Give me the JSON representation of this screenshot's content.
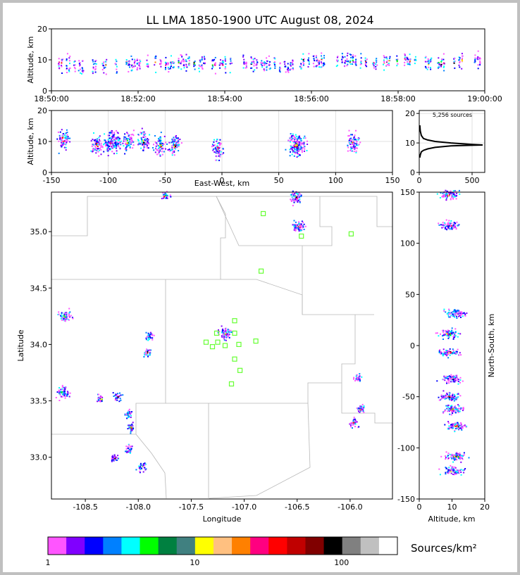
{
  "title": "LL LMA 1850-1900 UTC August 08, 2024",
  "panels": {
    "time_height": {
      "ylabel": "Altitude, km",
      "y_ticks": [
        "0",
        "10",
        "20"
      ],
      "x_ticks": [
        "18:50:00",
        "18:52:00",
        "18:54:00",
        "18:56:00",
        "18:58:00",
        "19:00:00"
      ]
    },
    "ew_height": {
      "ylabel": "Altitude, km",
      "xlabel": "East-West, km",
      "y_ticks": [
        "0",
        "10",
        "20"
      ],
      "x_ticks": [
        "-150",
        "-100",
        "-50",
        "0",
        "50",
        "100",
        "150"
      ]
    },
    "histogram": {
      "annotation": "5,256 sources",
      "x_ticks": [
        "0",
        "500"
      ],
      "y_ticks": [
        "0",
        "10",
        "20"
      ]
    },
    "plan_view": {
      "xlabel": "Longitude",
      "ylabel": "Latitude",
      "x_ticks": [
        "-108.5",
        "-108.0",
        "-107.5",
        "-107.0",
        "-106.5",
        "-106.0"
      ],
      "y_ticks": [
        "33.0",
        "33.5",
        "34.0",
        "34.5",
        "35.0"
      ]
    },
    "ns_height": {
      "xlabel": "Altitude, km",
      "ylabel": "North-South, km",
      "x_ticks": [
        "0",
        "10",
        "20"
      ],
      "y_ticks": [
        "-150",
        "-100",
        "-50",
        "0",
        "50",
        "100",
        "150"
      ]
    },
    "colorbar": {
      "label": "Sources/km²",
      "ticks": [
        "1",
        "10",
        "100"
      ],
      "colors": [
        "#ff55ff",
        "#8000ff",
        "#0000ff",
        "#0080ff",
        "#00ffff",
        "#00ff00",
        "#008040",
        "#408080",
        "#ffff00",
        "#ffc080",
        "#ff8000",
        "#ff0080",
        "#ff0000",
        "#c00000",
        "#800000",
        "#000000",
        "#808080",
        "#c0c0c0",
        "#ffffff"
      ]
    }
  },
  "chart_data": [
    {
      "type": "scatter",
      "panel": "time_height",
      "xlim": [
        "18:50:00",
        "19:00:00"
      ],
      "ylim": [
        0,
        20
      ],
      "clusters": [
        {
          "t_minutes": 0.2,
          "alt_km": 9
        },
        {
          "t_minutes": 1.0,
          "alt_km": 8
        },
        {
          "t_minutes": 2.0,
          "alt_km": 9
        },
        {
          "t_minutes": 3.0,
          "alt_km": 9
        },
        {
          "t_minutes": 4.0,
          "alt_km": 9
        },
        {
          "t_minutes": 5.0,
          "alt_km": 9
        },
        {
          "t_minutes": 5.5,
          "alt_km": 8
        },
        {
          "t_minutes": 6.0,
          "alt_km": 10
        },
        {
          "t_minutes": 7.0,
          "alt_km": 10
        },
        {
          "t_minutes": 7.5,
          "alt_km": 9
        },
        {
          "t_minutes": 8.0,
          "alt_km": 10
        },
        {
          "t_minutes": 9.0,
          "alt_km": 9
        },
        {
          "t_minutes": 9.8,
          "alt_km": 10
        }
      ]
    },
    {
      "type": "scatter",
      "panel": "ew_height",
      "xlim": [
        -150,
        150
      ],
      "ylim": [
        0,
        20
      ],
      "clusters": [
        {
          "x_km": -140,
          "alt_km": 11
        },
        {
          "x_km": -110,
          "alt_km": 9
        },
        {
          "x_km": -97,
          "alt_km": 10
        },
        {
          "x_km": -83,
          "alt_km": 10
        },
        {
          "x_km": -69,
          "alt_km": 10
        },
        {
          "x_km": -55,
          "alt_km": 9
        },
        {
          "x_km": -42,
          "alt_km": 9
        },
        {
          "x_km": -4,
          "alt_km": 8
        },
        {
          "x_km": 65,
          "alt_km": 9
        },
        {
          "x_km": 115,
          "alt_km": 10
        }
      ]
    },
    {
      "type": "line",
      "panel": "histogram",
      "xlabel": "",
      "ylabel": "",
      "xlim": [
        0,
        620
      ],
      "ylim": [
        0,
        21
      ],
      "sources": 5256,
      "x": [
        5,
        10,
        20,
        40,
        80,
        150,
        300,
        500,
        600,
        500,
        300,
        150,
        80,
        40,
        20,
        10,
        5
      ],
      "y": [
        5,
        6,
        7,
        7.5,
        8,
        8.5,
        9,
        9.2,
        9.3,
        9.5,
        10,
        10.5,
        11,
        11.5,
        12.5,
        14,
        16
      ]
    },
    {
      "type": "scatter",
      "panel": "plan_view",
      "xlim": [
        -108.82,
        -105.6
      ],
      "ylim": [
        32.63,
        35.35
      ],
      "clusters": [
        {
          "lon": -108.7,
          "lat": 34.25
        },
        {
          "lon": -108.72,
          "lat": 33.58
        },
        {
          "lon": -108.36,
          "lat": 33.52
        },
        {
          "lon": -108.2,
          "lat": 33.54
        },
        {
          "lon": -108.1,
          "lat": 33.39
        },
        {
          "lon": -108.07,
          "lat": 33.27
        },
        {
          "lon": -108.23,
          "lat": 33.0
        },
        {
          "lon": -108.09,
          "lat": 33.08
        },
        {
          "lon": -107.97,
          "lat": 32.92
        },
        {
          "lon": -107.9,
          "lat": 34.08
        },
        {
          "lon": -107.92,
          "lat": 33.93
        },
        {
          "lon": -107.19,
          "lat": 34.1
        },
        {
          "lon": -106.49,
          "lat": 35.05
        },
        {
          "lon": -106.51,
          "lat": 35.31
        },
        {
          "lon": -107.75,
          "lat": 35.32
        },
        {
          "lon": -105.94,
          "lat": 33.71
        },
        {
          "lon": -105.97,
          "lat": 33.31
        },
        {
          "lon": -105.9,
          "lat": 33.43
        }
      ],
      "stations": [
        {
          "lon": -106.82,
          "lat": 35.16
        },
        {
          "lon": -105.99,
          "lat": 34.98
        },
        {
          "lon": -106.46,
          "lat": 34.96
        },
        {
          "lon": -106.84,
          "lat": 34.65
        },
        {
          "lon": -107.09,
          "lat": 34.21
        },
        {
          "lon": -107.26,
          "lat": 34.1
        },
        {
          "lon": -107.09,
          "lat": 34.1
        },
        {
          "lon": -107.36,
          "lat": 34.02
        },
        {
          "lon": -107.25,
          "lat": 34.02
        },
        {
          "lon": -106.89,
          "lat": 34.03
        },
        {
          "lon": -107.3,
          "lat": 33.98
        },
        {
          "lon": -107.18,
          "lat": 33.99
        },
        {
          "lon": -107.05,
          "lat": 34.0
        },
        {
          "lon": -107.09,
          "lat": 33.87
        },
        {
          "lon": -107.04,
          "lat": 33.77
        },
        {
          "lon": -107.12,
          "lat": 33.65
        }
      ]
    },
    {
      "type": "scatter",
      "panel": "ns_height",
      "xlim": [
        0,
        20
      ],
      "ylim": [
        -150,
        150
      ],
      "clusters": [
        {
          "alt_km": 9,
          "y_km": 148
        },
        {
          "alt_km": 9,
          "y_km": 118
        },
        {
          "alt_km": 11,
          "y_km": 32
        },
        {
          "alt_km": 9,
          "y_km": 12
        },
        {
          "alt_km": 9,
          "y_km": -6
        },
        {
          "alt_km": 10,
          "y_km": -32
        },
        {
          "alt_km": 9,
          "y_km": -50
        },
        {
          "alt_km": 10,
          "y_km": -62
        },
        {
          "alt_km": 11,
          "y_km": -78
        },
        {
          "alt_km": 11,
          "y_km": -108
        },
        {
          "alt_km": 10,
          "y_km": -122
        }
      ]
    }
  ]
}
